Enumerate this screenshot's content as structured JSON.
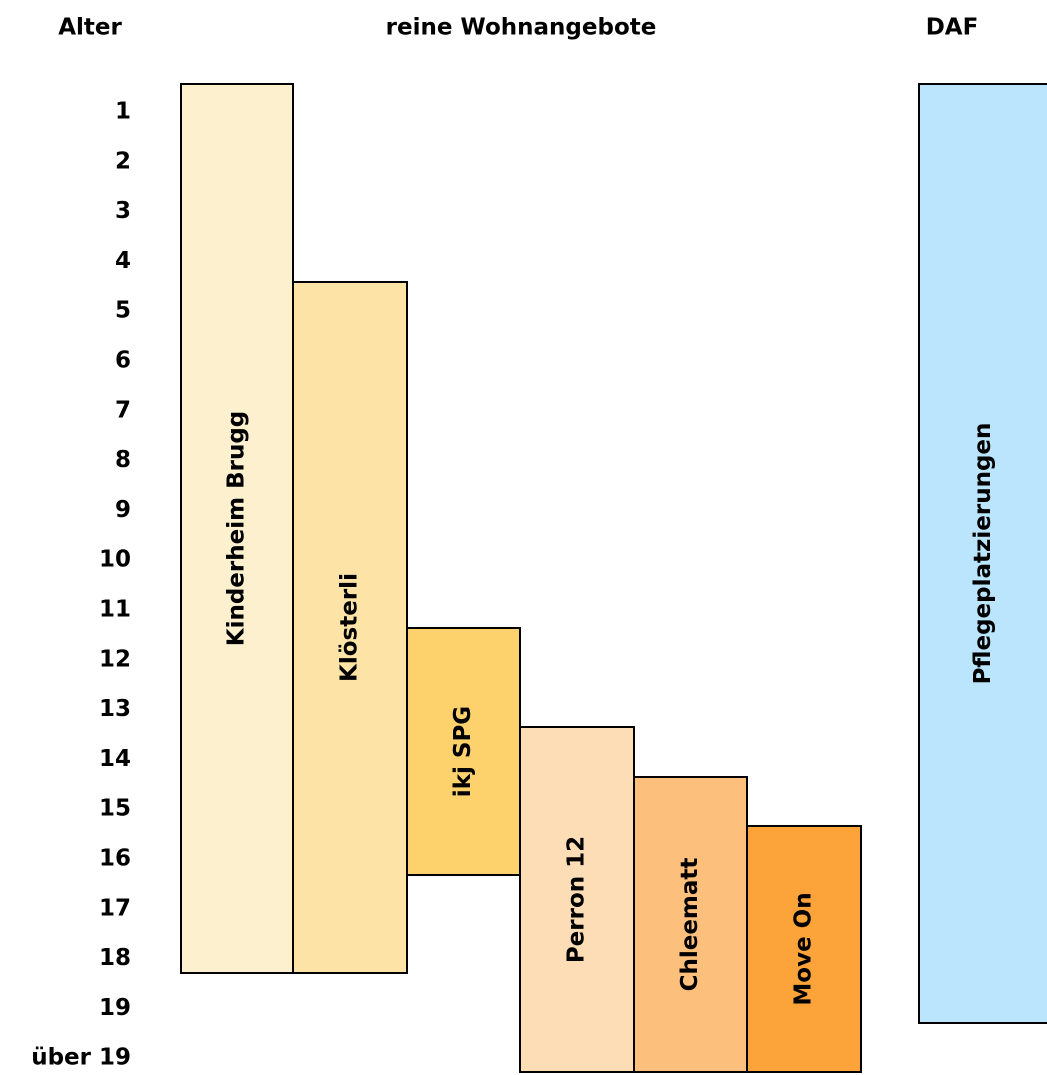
{
  "header": {
    "age": "Alter",
    "offers": "reine Wohnangebote",
    "daf": "DAF"
  },
  "ages": [
    "1",
    "2",
    "3",
    "4",
    "5",
    "6",
    "7",
    "8",
    "9",
    "10",
    "11",
    "12",
    "13",
    "14",
    "15",
    "16",
    "17",
    "18",
    "19",
    "über 19"
  ],
  "offers": [
    {
      "label": "Kinderheim Brugg"
    },
    {
      "label": "Klösterli"
    },
    {
      "label": "ikj SPG"
    },
    {
      "label": "Perron 12"
    },
    {
      "label": "Chleematt"
    },
    {
      "label": "Move On"
    }
  ],
  "daf": {
    "label": "Pflegeplatzierungen"
  }
}
